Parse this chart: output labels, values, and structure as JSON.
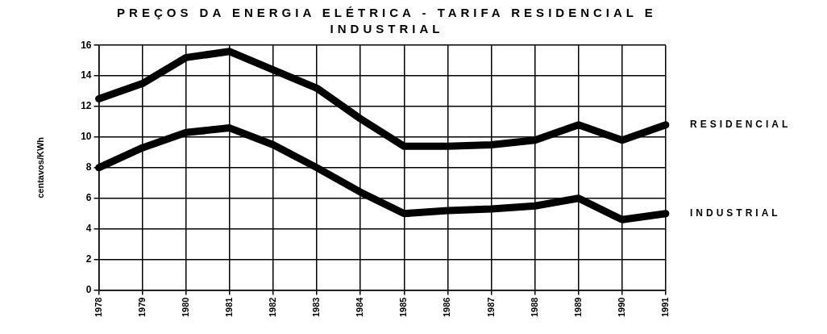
{
  "chart_data": {
    "type": "line",
    "title": "PREÇOS DA ENERGIA ELÉTRICA - TARIFA RESIDENCIAL E INDUSTRIAL",
    "ylabel": "centavos/KWh",
    "categories": [
      "1978",
      "1979",
      "1980",
      "1981",
      "1982",
      "1983",
      "1984",
      "1985",
      "1986",
      "1987",
      "1988",
      "1989",
      "1990",
      "1991"
    ],
    "series": [
      {
        "name": "RESIDENCIAL",
        "color": "#000000",
        "values": [
          12.5,
          13.5,
          15.2,
          15.6,
          14.4,
          13.2,
          11.2,
          9.4,
          9.4,
          9.5,
          9.8,
          10.8,
          9.8,
          10.8
        ]
      },
      {
        "name": "INDUSTRIAL",
        "color": "#000000",
        "values": [
          8,
          9.3,
          10.3,
          10.6,
          9.5,
          8,
          6.4,
          5,
          5.2,
          5.3,
          5.5,
          6,
          4.6,
          5
        ]
      }
    ],
    "ylim": [
      0,
      16
    ],
    "yticks": [
      0,
      2,
      4,
      6,
      8,
      10,
      12,
      14,
      16
    ],
    "grid": true,
    "marker": "none",
    "line_style": "solid"
  }
}
